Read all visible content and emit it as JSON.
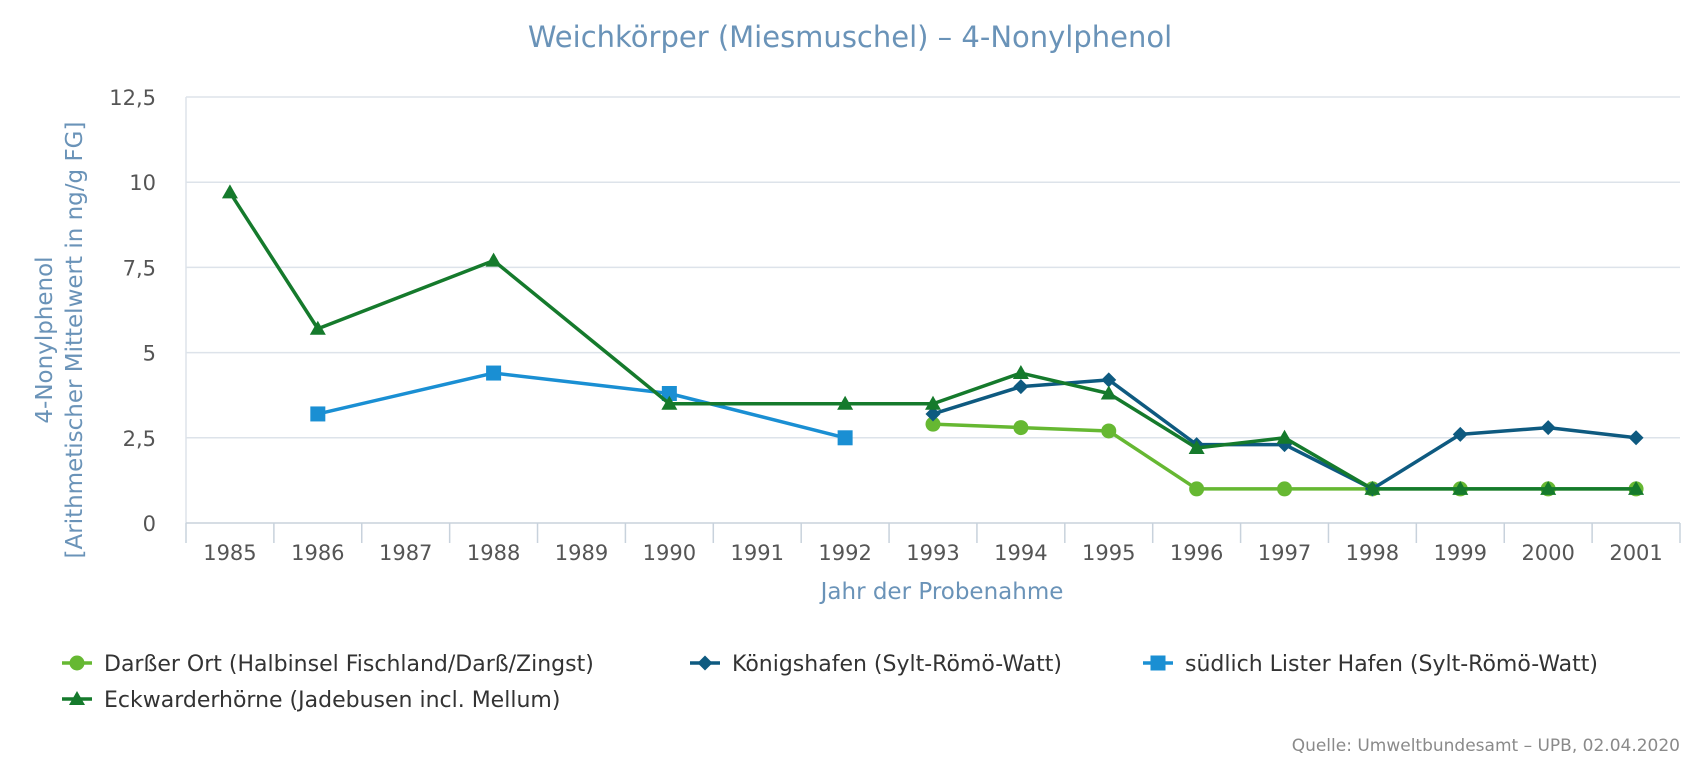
{
  "chart_data": {
    "type": "line",
    "title": "Weichkörper (Miesmuschel) – 4-Nonylphenol",
    "xlabel": "Jahr der Probenahme",
    "ylabel_line1": "4-Nonylphenol",
    "ylabel_line2": "[Arithmetischer Mittelwert in ng/g FG]",
    "categories": [
      "1985",
      "1986",
      "1987",
      "1988",
      "1989",
      "1990",
      "1991",
      "1992",
      "1993",
      "1994",
      "1995",
      "1996",
      "1997",
      "1998",
      "1999",
      "2000",
      "2001"
    ],
    "y_ticks": [
      "0",
      "2,5",
      "5",
      "7,5",
      "10",
      "12,5"
    ],
    "ylim": [
      0,
      12.5
    ],
    "grid": "horizontal",
    "legend_position": "bottom",
    "series": [
      {
        "name": "Darßer Ort (Halbinsel Fischland/Darß/Zingst)",
        "color": "#66b832",
        "marker": "circle",
        "values": [
          null,
          null,
          null,
          null,
          null,
          null,
          null,
          null,
          2.9,
          2.8,
          2.7,
          1.0,
          1.0,
          1.0,
          1.0,
          1.0,
          1.0
        ]
      },
      {
        "name": "Königshafen (Sylt-Römö-Watt)",
        "color": "#0e5a80",
        "marker": "diamond",
        "values": [
          null,
          null,
          null,
          null,
          null,
          null,
          null,
          null,
          3.2,
          4.0,
          4.2,
          2.3,
          2.3,
          1.0,
          2.6,
          2.8,
          2.5
        ]
      },
      {
        "name": "südlich Lister Hafen (Sylt-Römö-Watt)",
        "color": "#1a8fd3",
        "marker": "square",
        "values": [
          null,
          3.2,
          null,
          4.4,
          null,
          3.8,
          null,
          2.5,
          null,
          null,
          null,
          null,
          null,
          null,
          null,
          null,
          null
        ]
      },
      {
        "name": "Eckwarderhörne (Jadebusen incl. Mellum)",
        "color": "#157a2c",
        "marker": "triangle",
        "values": [
          9.7,
          5.7,
          null,
          7.7,
          null,
          3.5,
          null,
          3.5,
          3.5,
          4.4,
          3.8,
          2.2,
          2.5,
          1.0,
          1.0,
          1.0,
          1.0
        ]
      }
    ]
  },
  "source": "Quelle: Umweltbundesamt – UPB, 02.04.2020"
}
